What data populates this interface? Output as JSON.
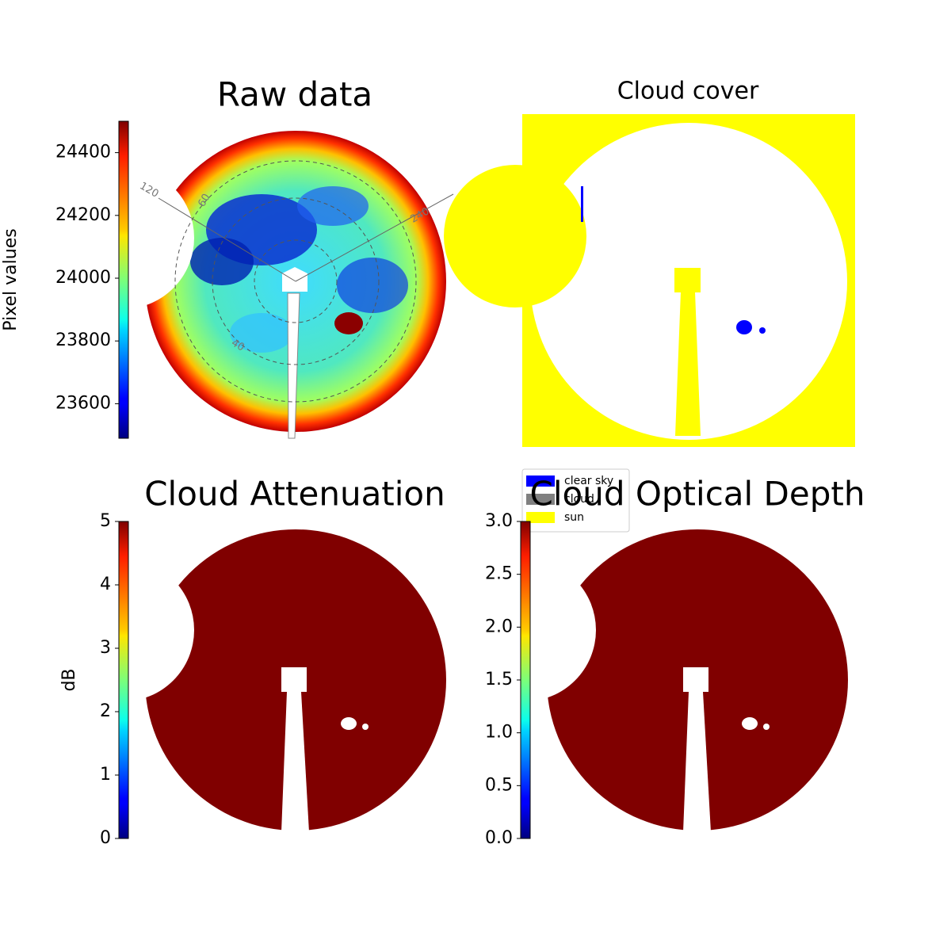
{
  "chart_data": [
    {
      "type": "image",
      "title": "Raw data",
      "colorbar": {
        "label": "Pixel values",
        "cmap": "jet",
        "clim": [
          23490,
          24500
        ],
        "ticks": [
          23600,
          23800,
          24000,
          24200,
          24400
        ]
      },
      "annotations": [
        "120",
        "60",
        "240",
        "40"
      ]
    },
    {
      "type": "image",
      "title": "Cloud cover",
      "legend": {
        "entries": [
          {
            "name": "clear sky",
            "color": "#0000ff"
          },
          {
            "name": "cloud",
            "color": "#808080"
          },
          {
            "name": "sun",
            "color": "#ffff00"
          }
        ]
      }
    },
    {
      "type": "image",
      "title": "Cloud Attenuation",
      "colorbar": {
        "label": "dB",
        "cmap": "jet",
        "clim": [
          0,
          5
        ],
        "ticks": [
          0,
          1,
          2,
          3,
          4,
          5
        ]
      }
    },
    {
      "type": "image",
      "title": "Cloud Optical Depth",
      "colorbar": {
        "cmap": "jet",
        "clim": [
          0,
          3
        ],
        "ticks": [
          {
            "value": 0,
            "label": "0.0"
          },
          0.5,
          {
            "value": 1,
            "label": "1.0"
          },
          1.5,
          {
            "value": 2,
            "label": "2.0"
          },
          2.5,
          {
            "value": 3,
            "label": "3.0"
          }
        ]
      }
    }
  ]
}
